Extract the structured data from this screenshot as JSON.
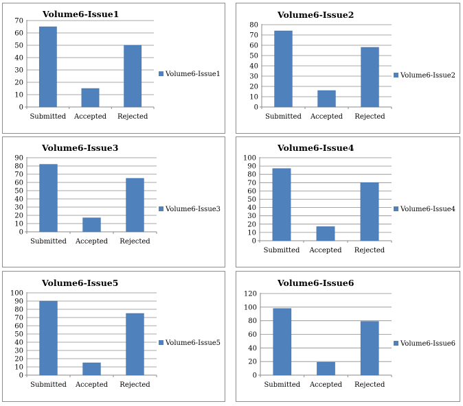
{
  "colors": {
    "bar": "#4f81bd"
  },
  "chart_data": [
    {
      "type": "bar",
      "title": "Volume6-Issue1",
      "categories": [
        "Submitted",
        "Accepted",
        "Rejected"
      ],
      "series": [
        {
          "name": "Volume6-Issue1",
          "values": [
            65,
            15,
            50
          ]
        }
      ],
      "ylim": [
        0,
        70
      ],
      "yticks": [
        0,
        10,
        20,
        30,
        40,
        50,
        60,
        70
      ],
      "grid": true,
      "legend": "right"
    },
    {
      "type": "bar",
      "title": "Volume6-Issue2",
      "categories": [
        "Submitted",
        "Accepted",
        "Rejected"
      ],
      "series": [
        {
          "name": "Volume6-Issue2",
          "values": [
            74,
            16,
            58
          ]
        }
      ],
      "ylim": [
        0,
        80
      ],
      "yticks": [
        0,
        10,
        20,
        30,
        40,
        50,
        60,
        70,
        80
      ],
      "grid": true,
      "legend": "right"
    },
    {
      "type": "bar",
      "title": "Volume6-Issue3",
      "categories": [
        "Submitted",
        "Accepted",
        "Rejected"
      ],
      "series": [
        {
          "name": "Volume6-Issue3",
          "values": [
            82,
            17,
            65
          ]
        }
      ],
      "ylim": [
        0,
        90
      ],
      "yticks": [
        0,
        10,
        20,
        30,
        40,
        50,
        60,
        70,
        80,
        90
      ],
      "grid": true,
      "legend": "right"
    },
    {
      "type": "bar",
      "title": "Volume6-Issue4",
      "categories": [
        "Submitted",
        "Accepted",
        "Rejected"
      ],
      "series": [
        {
          "name": "Volume6-Issue4",
          "values": [
            87,
            17,
            70
          ]
        }
      ],
      "ylim": [
        0,
        100
      ],
      "yticks": [
        0,
        10,
        20,
        30,
        40,
        50,
        60,
        70,
        80,
        90,
        100
      ],
      "grid": true,
      "legend": "right"
    },
    {
      "type": "bar",
      "title": "Volume6-Issue5",
      "categories": [
        "Submitted",
        "Accepted",
        "Rejected"
      ],
      "series": [
        {
          "name": "Volume6-Issue5",
          "values": [
            90,
            15,
            75
          ]
        }
      ],
      "ylim": [
        0,
        100
      ],
      "yticks": [
        0,
        10,
        20,
        30,
        40,
        50,
        60,
        70,
        80,
        90,
        100
      ],
      "grid": true,
      "legend": "right"
    },
    {
      "type": "bar",
      "title": "Volume6-Issue6",
      "categories": [
        "Submitted",
        "Accepted",
        "Rejected"
      ],
      "series": [
        {
          "name": "Volume6-Issue6",
          "values": [
            98,
            19,
            79
          ]
        }
      ],
      "ylim": [
        0,
        120
      ],
      "yticks": [
        0,
        20,
        40,
        60,
        80,
        100,
        120
      ],
      "grid": true,
      "legend": "right"
    }
  ]
}
